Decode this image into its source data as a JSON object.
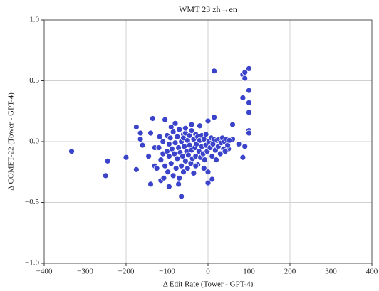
{
  "chart_data": {
    "type": "scatter",
    "title": "WMT 23 zh→en",
    "xlabel": "Δ Edit Rate (Tower - GPT-4)",
    "ylabel": "Δ COMET-22 (Tower - GPT-4)",
    "color": "#3a43c9",
    "grid": true,
    "xlim": [
      -400,
      400
    ],
    "ylim": [
      -1.0,
      1.0
    ],
    "xticks": [
      {
        "value": -400,
        "label": "−400"
      },
      {
        "value": -300,
        "label": "−300"
      },
      {
        "value": -200,
        "label": "−200"
      },
      {
        "value": -100,
        "label": "−100"
      },
      0,
      100,
      200,
      300,
      400
    ],
    "yticks": [
      {
        "value": -1.0,
        "label": "−1.0"
      },
      {
        "value": -0.5,
        "label": "−0.5"
      },
      {
        "value": 0.0,
        "label": "0.0"
      },
      {
        "value": 0.5,
        "label": "0.5"
      },
      {
        "value": 1.0,
        "label": "1.0"
      }
    ],
    "x": [
      -333,
      -250,
      -245,
      -200,
      -175,
      -175,
      -165,
      -165,
      -160,
      -145,
      -140,
      -135,
      -130,
      -130,
      -140,
      -115,
      -105,
      -95,
      -65,
      -80,
      -60,
      -40,
      -20,
      0,
      10,
      0,
      15,
      15,
      60,
      85,
      90,
      100,
      90,
      100,
      85,
      100,
      100,
      100,
      100,
      85,
      90,
      75,
      60,
      50,
      -120,
      -115,
      -110,
      -110,
      -105,
      -100,
      -100,
      -98,
      -95,
      -95,
      -92,
      -90,
      -88,
      -85,
      -85,
      -82,
      -80,
      -78,
      -75,
      -75,
      -72,
      -70,
      -70,
      -68,
      -65,
      -65,
      -62,
      -60,
      -60,
      -58,
      -55,
      -55,
      -52,
      -50,
      -50,
      -48,
      -45,
      -45,
      -42,
      -40,
      -40,
      -38,
      -35,
      -35,
      -32,
      -30,
      -30,
      -28,
      -25,
      -25,
      -22,
      -20,
      -18,
      -15,
      -15,
      -12,
      -10,
      -8,
      -5,
      -5,
      -2,
      0,
      2,
      5,
      8,
      10,
      12,
      15,
      18,
      20,
      22,
      25,
      28,
      30,
      32,
      35,
      38,
      40,
      42,
      45,
      48,
      52,
      -125,
      -118,
      -108,
      -90,
      -72,
      -55,
      -30,
      -10
    ],
    "y": [
      -0.08,
      -0.28,
      -0.16,
      -0.13,
      -0.23,
      0.12,
      0.07,
      0.02,
      -0.03,
      -0.12,
      0.07,
      0.19,
      -0.05,
      -0.2,
      -0.35,
      -0.32,
      0.18,
      -0.37,
      -0.45,
      0.15,
      0.06,
      0.14,
      0.13,
      0.17,
      -0.31,
      -0.34,
      0.58,
      0.2,
      0.14,
      0.55,
      0.57,
      0.6,
      0.52,
      0.42,
      0.36,
      0.32,
      0.24,
      0.09,
      0.07,
      -0.13,
      -0.04,
      -0.02,
      0.02,
      -0.06,
      -0.05,
      -0.15,
      0.0,
      -0.1,
      -0.2,
      0.05,
      -0.08,
      -0.25,
      -0.02,
      -0.12,
      0.03,
      -0.18,
      -0.06,
      0.08,
      -0.28,
      -0.1,
      -0.01,
      -0.22,
      0.04,
      -0.14,
      -0.05,
      0.1,
      -0.3,
      -0.09,
      0.0,
      -0.2,
      -0.12,
      0.03,
      -0.25,
      -0.04,
      0.07,
      -0.16,
      -0.08,
      0.01,
      -0.22,
      -0.11,
      0.05,
      -0.03,
      -0.18,
      0.09,
      -0.07,
      -0.14,
      0.02,
      -0.26,
      -0.05,
      0.06,
      -0.12,
      -0.02,
      0.04,
      -0.19,
      -0.08,
      0.01,
      -0.13,
      0.05,
      -0.04,
      -0.1,
      0.02,
      -0.15,
      -0.03,
      0.06,
      -0.08,
      -0.25,
      0.0,
      -0.05,
      0.03,
      -0.12,
      -0.02,
      0.02,
      -0.07,
      -0.15,
      0.01,
      -0.04,
      0.02,
      -0.1,
      -0.01,
      0.03,
      -0.06,
      0.0,
      -0.08,
      0.02,
      -0.03,
      0.01,
      -0.22,
      0.04,
      -0.3,
      0.12,
      -0.35,
      0.11,
      -0.2,
      -0.22
    ]
  }
}
